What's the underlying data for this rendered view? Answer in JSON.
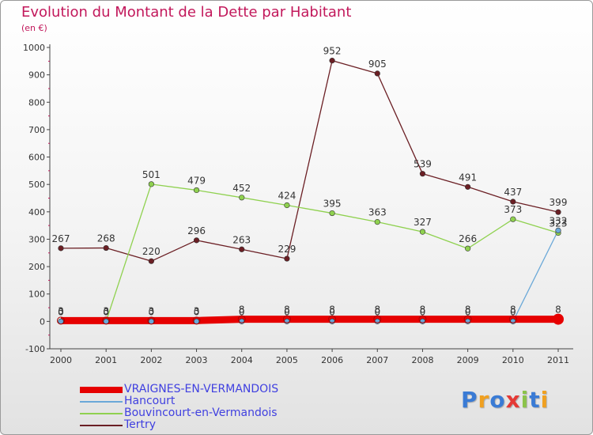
{
  "title": "Evolution du Montant de la Dette par Habitant",
  "subtitle": "(en €)",
  "logo": {
    "text": "Proxiti",
    "colors": [
      "#3a7bd5",
      "#f0a020",
      "#3a7bd5",
      "#e53935",
      "#8bc34a",
      "#3a7bd5",
      "#f0a020"
    ]
  },
  "chart_data": {
    "type": "line",
    "x": [
      "2000",
      "2001",
      "2002",
      "2003",
      "2004",
      "2005",
      "2006",
      "2007",
      "2008",
      "2009",
      "2010",
      "2011"
    ],
    "ylim": [
      -100,
      1000
    ],
    "yticks": [
      -100,
      0,
      100,
      200,
      300,
      400,
      500,
      600,
      700,
      800,
      900,
      1000
    ],
    "grid": false,
    "legend": "bottom-left",
    "series": [
      {
        "name": "Tertry",
        "color": "#6b1f24",
        "values": [
          267,
          268,
          220,
          296,
          263,
          229,
          952,
          905,
          539,
          491,
          437,
          399
        ],
        "labels": [
          "267",
          "268",
          "220",
          "296",
          "263",
          "229",
          "952",
          "905",
          "539",
          "491",
          "437",
          "399"
        ]
      },
      {
        "name": "Bouvincourt-en-Vermandois",
        "color": "#8fd14f",
        "values": [
          0,
          0,
          501,
          479,
          452,
          424,
          395,
          363,
          327,
          266,
          373,
          323
        ],
        "labels": [
          "0",
          "0",
          "501",
          "479",
          "452",
          "424",
          "395",
          "363",
          "327",
          "266",
          "373",
          "323"
        ]
      },
      {
        "name": "Hancourt",
        "color": "#6aa8d8",
        "values": [
          0,
          0,
          0,
          0,
          0,
          0,
          0,
          0,
          0,
          0,
          0,
          332
        ],
        "labels": [
          "0",
          "0",
          "0",
          "0",
          "0",
          "0",
          "0",
          "0",
          "0",
          "0",
          "0",
          "332"
        ]
      },
      {
        "name": "VRAIGNES-EN-VERMANDOIS",
        "color": "#e60000",
        "values": [
          3,
          3,
          3,
          3,
          8,
          8,
          8,
          8,
          8,
          8,
          8,
          8
        ],
        "labels": [
          "3",
          "3",
          "3",
          "3",
          "8",
          "8",
          "8",
          "8",
          "8",
          "8",
          "8",
          "8"
        ]
      }
    ]
  }
}
